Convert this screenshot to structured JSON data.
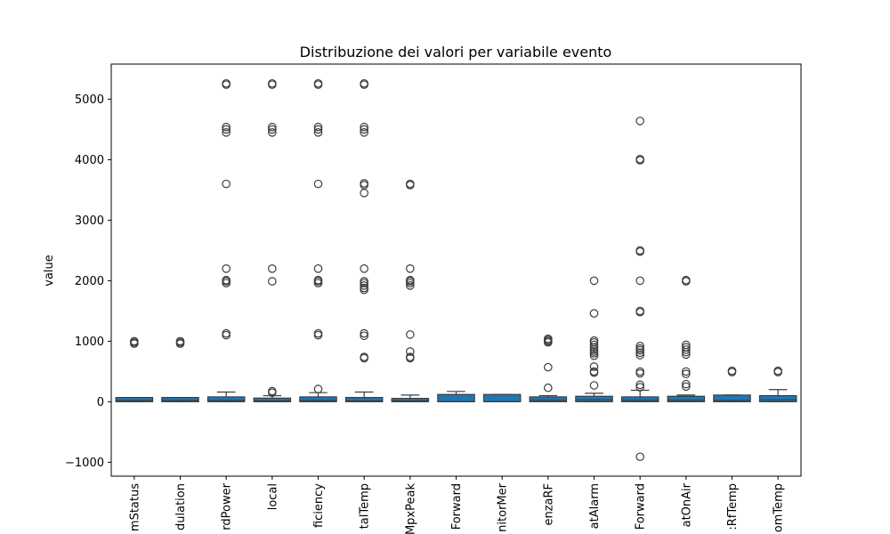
{
  "chart_data": {
    "type": "box",
    "title": "Distribuzione dei valori per variabile evento",
    "xlabel": "",
    "ylabel": "value",
    "ylim": [
      -1230,
      5580
    ],
    "yticks": [
      -1000,
      0,
      1000,
      2000,
      3000,
      4000,
      5000
    ],
    "yticklabels": [
      "−1000",
      "0",
      "1000",
      "2000",
      "3000",
      "4000",
      "5000"
    ],
    "grid": false,
    "box_color": "#1f77b4",
    "categories": [
      "mStatus",
      "dulation",
      "rdPower",
      "local",
      "ficiency",
      "talTemp",
      "MpxPeak",
      "Forward",
      "nitorMer",
      "enzaRF",
      "atAlarm",
      "Forward",
      "atOnAir",
      ":RfTemp",
      "omTemp"
    ],
    "boxes": [
      {
        "q1": 0,
        "median": 20,
        "q3": 70,
        "whislo": 0,
        "whishi": 70,
        "fliers": [
          960,
          980,
          1000
        ]
      },
      {
        "q1": 0,
        "median": 20,
        "q3": 70,
        "whislo": 0,
        "whishi": 70,
        "fliers": [
          960,
          980,
          1000
        ]
      },
      {
        "q1": 0,
        "median": 20,
        "q3": 80,
        "whislo": 0,
        "whishi": 160,
        "fliers": [
          1100,
          1130,
          1960,
          1990,
          2010,
          2200,
          3600,
          4450,
          4500,
          4540,
          5240,
          5260
        ]
      },
      {
        "q1": 0,
        "median": 15,
        "q3": 60,
        "whislo": 0,
        "whishi": 100,
        "fliers": [
          150,
          175,
          1990,
          2200,
          4450,
          4500,
          4540,
          5240,
          5260
        ]
      },
      {
        "q1": 0,
        "median": 20,
        "q3": 80,
        "whislo": 0,
        "whishi": 150,
        "fliers": [
          210,
          1100,
          1130,
          1960,
          1990,
          2010,
          2200,
          3600,
          4450,
          4500,
          4540,
          5240,
          5260
        ]
      },
      {
        "q1": 0,
        "median": 15,
        "q3": 70,
        "whislo": 0,
        "whishi": 160,
        "fliers": [
          720,
          740,
          1090,
          1130,
          1850,
          1880,
          1920,
          1960,
          1990,
          2200,
          3450,
          3580,
          3610,
          4450,
          4500,
          4540,
          5240,
          5260
        ]
      },
      {
        "q1": 0,
        "median": 15,
        "q3": 55,
        "whislo": 0,
        "whishi": 110,
        "fliers": [
          720,
          740,
          830,
          1110,
          1920,
          1960,
          1990,
          2010,
          2200,
          3580,
          3600
        ]
      },
      {
        "q1": 0,
        "median": 0,
        "q3": 120,
        "whislo": 0,
        "whishi": 170,
        "fliers": []
      },
      {
        "q1": 0,
        "median": 0,
        "q3": 120,
        "whislo": 0,
        "whishi": 120,
        "fliers": []
      },
      {
        "q1": 0,
        "median": 25,
        "q3": 80,
        "whislo": 0,
        "whishi": 100,
        "fliers": [
          230,
          570,
          980,
          1000,
          1020,
          1040
        ]
      },
      {
        "q1": 0,
        "median": 30,
        "q3": 90,
        "whislo": 0,
        "whishi": 140,
        "fliers": [
          270,
          480,
          500,
          580,
          760,
          800,
          830,
          860,
          900,
          940,
          980,
          1010,
          1460,
          2000
        ]
      },
      {
        "q1": 0,
        "median": 25,
        "q3": 80,
        "whislo": 0,
        "whishi": 190,
        "fliers": [
          -910,
          240,
          280,
          470,
          500,
          770,
          810,
          850,
          880,
          920,
          1480,
          1500,
          2000,
          2480,
          2500,
          3990,
          4010,
          4640
        ]
      },
      {
        "q1": 0,
        "median": 25,
        "q3": 90,
        "whislo": 0,
        "whishi": 110,
        "fliers": [
          250,
          290,
          460,
          500,
          780,
          820,
          860,
          900,
          940,
          1990,
          2010
        ]
      },
      {
        "q1": 0,
        "median": 20,
        "q3": 110,
        "whislo": 0,
        "whishi": 110,
        "fliers": [
          490,
          510
        ]
      },
      {
        "q1": 0,
        "median": 30,
        "q3": 100,
        "whislo": 0,
        "whishi": 200,
        "fliers": [
          490,
          510
        ]
      }
    ]
  }
}
